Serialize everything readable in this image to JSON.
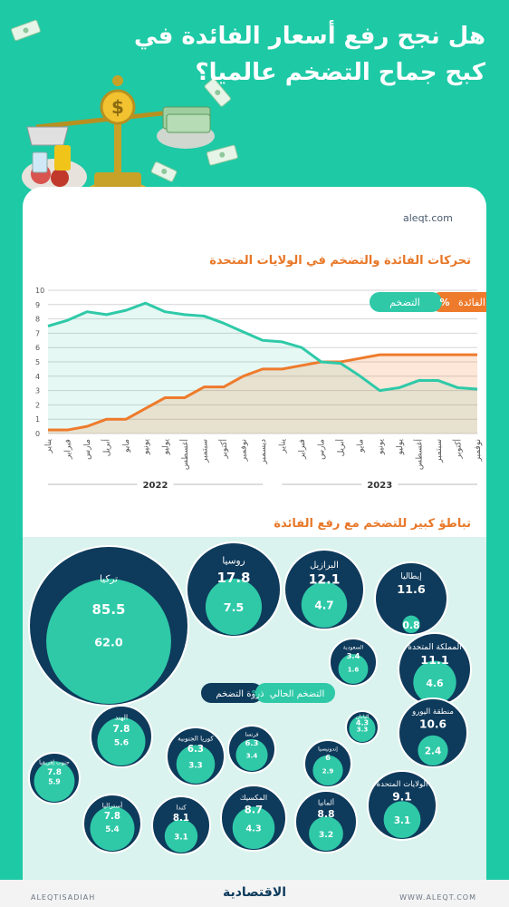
{
  "header": {
    "title": "هل نجح رفع أسعار الفائدة في كبح جماح التضخم عالميا؟"
  },
  "site": "aleqt.com",
  "colors": {
    "inflation": "#2fc9a8",
    "interest": "#ee7b2c",
    "navy": "#0e3a5b",
    "teal": "#1ec9a6"
  },
  "chart_data": [
    {
      "type": "line",
      "title": "تحركات الفائدة والتضخم في الولايات المتحدة",
      "categories": [
        "يناير",
        "فبراير",
        "مارس",
        "أبريل",
        "مايو",
        "يونيو",
        "يوليو",
        "أغسطس",
        "سبتمبر",
        "أكتوبر",
        "نوفمبر",
        "ديسمبر",
        "يناير",
        "فبراير",
        "مارس",
        "أبريل",
        "مايو",
        "يونيو",
        "يوليو",
        "أغسطس",
        "سبتمبر",
        "أكتوبر",
        "نوفمبر"
      ],
      "years": [
        "2022",
        "2023"
      ],
      "ylim": [
        0,
        10
      ],
      "yticks": [
        "0",
        "1",
        "2",
        "3",
        "4",
        "5",
        "6",
        "7",
        "8",
        "9",
        "10"
      ],
      "legend": {
        "interest": "الفائدة",
        "inflation": "التضخم",
        "unit": "%"
      },
      "series": [
        {
          "name": "التضخم",
          "values": [
            7.5,
            7.9,
            8.5,
            8.3,
            8.6,
            9.1,
            8.5,
            8.3,
            8.2,
            7.7,
            7.1,
            6.5,
            6.4,
            6.0,
            5.0,
            4.9,
            4.0,
            3.0,
            3.2,
            3.7,
            3.7,
            3.2,
            3.1
          ]
        },
        {
          "name": "الفائدة",
          "values": [
            0.25,
            0.25,
            0.5,
            1.0,
            1.0,
            1.75,
            2.5,
            2.5,
            3.25,
            3.25,
            4.0,
            4.5,
            4.5,
            4.75,
            5.0,
            5.0,
            5.25,
            5.5,
            5.5,
            5.5,
            5.5,
            5.5,
            5.5
          ]
        }
      ]
    },
    {
      "type": "bubble",
      "title": "تباطؤ كبير للتضخم مع رفع الفائدة",
      "legend": {
        "peak": "ذروة التضخم",
        "current": "التضخم الحالي",
        "unit": "%"
      },
      "countries": [
        {
          "name": "تركيا",
          "peak": "85.5",
          "current": "62.0"
        },
        {
          "name": "روسيا",
          "peak": "17.8",
          "current": "7.5"
        },
        {
          "name": "البرازيل",
          "peak": "12.1",
          "current": "4.7"
        },
        {
          "name": "إيطاليا",
          "peak": "11.6",
          "current": "0.8"
        },
        {
          "name": "السعودية",
          "peak": "3.4",
          "current": "1.6"
        },
        {
          "name": "المملكة المتحدة",
          "peak": "11.1",
          "current": "4.6"
        },
        {
          "name": "منطقة اليورو",
          "peak": "10.6",
          "current": "2.4"
        },
        {
          "name": "اليابان",
          "peak": "4.3",
          "current": "3.3"
        },
        {
          "name": "إندونيسيا",
          "peak": "6",
          "current": "2.9"
        },
        {
          "name": "فرنسا",
          "peak": "6.3",
          "current": "3.4"
        },
        {
          "name": "كوريا الجنوبية",
          "peak": "6.3",
          "current": "3.3"
        },
        {
          "name": "الهند",
          "peak": "7.8",
          "current": "5.6"
        },
        {
          "name": "جنوب إفريقيا",
          "peak": "7.8",
          "current": "5.9"
        },
        {
          "name": "الولايات المتحدة",
          "peak": "9.1",
          "current": "3.1"
        },
        {
          "name": "ألمانيا",
          "peak": "8.8",
          "current": "3.2"
        },
        {
          "name": "المكسيك",
          "peak": "8.7",
          "current": "4.3"
        },
        {
          "name": "كندا",
          "peak": "8.1",
          "current": "3.1"
        },
        {
          "name": "أستراليا",
          "peak": "7.8",
          "current": "5.4"
        }
      ]
    }
  ],
  "footer": {
    "logo": "الاقتصادية",
    "handle": "ALEQTISADIAH",
    "site": "WWW.ALEQT.COM"
  }
}
